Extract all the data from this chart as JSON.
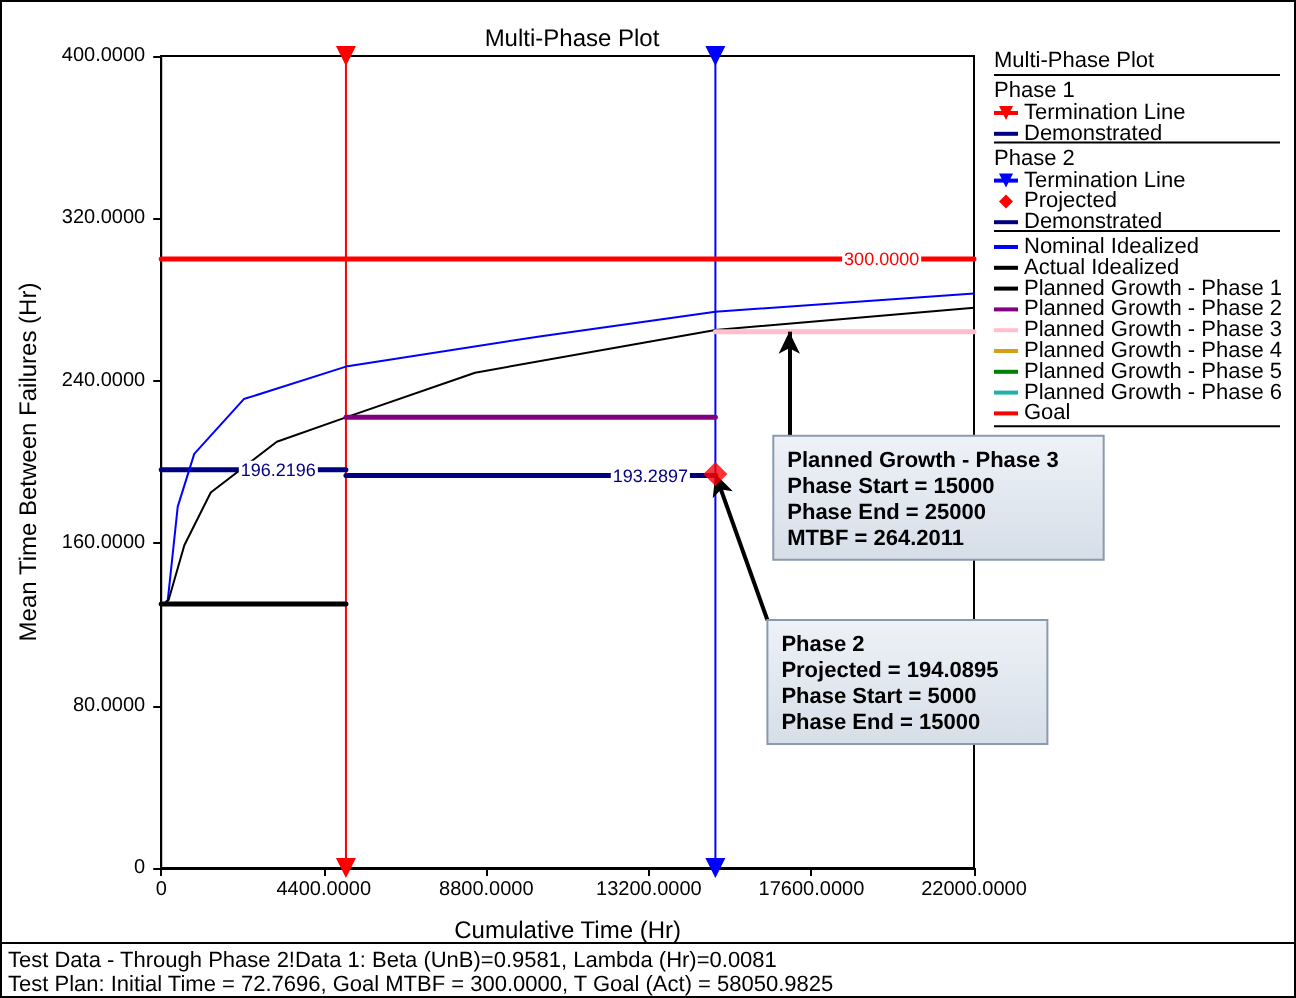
{
  "chart_data": {
    "type": "line",
    "title": "Multi-Phase Plot",
    "xlabel": "Cumulative Time (Hr)",
    "ylabel": "Mean Time Between Failures (Hr)",
    "legend_title": "Multi-Phase Plot",
    "legend": "right",
    "xlim": [
      0,
      22000
    ],
    "xticks": [
      0,
      {
        "value": 4400,
        "label": "4400.0000"
      },
      {
        "value": 8800,
        "label": "8800.0000"
      },
      {
        "value": 13200,
        "label": "13200.0000"
      },
      {
        "value": 17600,
        "label": "17600.0000"
      },
      {
        "value": 22000,
        "label": "22000.0000"
      }
    ],
    "ylim": [
      0,
      400
    ],
    "yticks": [
      0,
      {
        "value": 80,
        "label": "80.0000"
      },
      {
        "value": 160,
        "label": "160.0000"
      },
      {
        "value": 240,
        "label": "240.0000"
      },
      {
        "value": 320,
        "label": "320.0000"
      },
      {
        "value": 400,
        "label": "400.0000"
      }
    ],
    "grid": false,
    "marker": "none",
    "line_style": "solid",
    "series": [
      {
        "name": "Termination Line",
        "color": "#ff0000",
        "x": [
          5000,
          5000
        ],
        "values": [
          0,
          400
        ],
        "marker": "triangle"
      },
      {
        "name": "Demonstrated",
        "color": "#000080",
        "x": [
          0,
          3170,
          5000
        ],
        "values": [
          196.2196,
          196.2196,
          196.2196
        ],
        "value_labels": [
          null,
          "196.2196",
          null
        ]
      },
      {
        "name": "Termination Line",
        "color": "#0000ff",
        "x": [
          15000,
          15000
        ],
        "values": [
          0,
          400
        ],
        "marker": "triangle"
      },
      {
        "name": "Projected",
        "type": "scatter",
        "color": "#ff0000",
        "x": [
          15000
        ],
        "values": [
          194.0895
        ],
        "marker": "diamond"
      },
      {
        "name": "Demonstrated",
        "color": "#000080",
        "x": [
          5000,
          13240,
          15000
        ],
        "values": [
          193.2897,
          193.2897,
          193.2897
        ],
        "value_labels": [
          null,
          "193.2897",
          null
        ]
      },
      {
        "name": "Nominal Idealized",
        "color": "#0000ff",
        "x": [
          73,
          178,
          447,
          894,
          2236,
          5000,
          10285,
          15000,
          22000
        ],
        "values": [
          130,
          132,
          178,
          204,
          231,
          247,
          262,
          274,
          283
        ]
      },
      {
        "name": "Actual Idealized",
        "color": "#000000",
        "x": [
          73,
          200,
          626,
          1341,
          3129,
          5000,
          8495,
          15000,
          22000
        ],
        "values": [
          130,
          132,
          159,
          185,
          210,
          222,
          244,
          265,
          276
        ]
      },
      {
        "name": "Planned Growth - Phase 1",
        "color": "#000000",
        "x": [
          0,
          5000
        ],
        "values": [
          130,
          130
        ]
      },
      {
        "name": "Planned Growth - Phase 2",
        "color": "#800080",
        "x": [
          5000,
          15000
        ],
        "values": [
          222,
          222
        ]
      },
      {
        "name": "Planned Growth - Phase 3",
        "color": "#ffc0cb",
        "x": [
          15000,
          22000
        ],
        "values": [
          264.2011,
          264.2011
        ]
      },
      {
        "name": "Planned Growth - Phase 4",
        "color": "#d4a017"
      },
      {
        "name": "Planned Growth - Phase 5",
        "color": "#008000"
      },
      {
        "name": "Planned Growth - Phase 6",
        "color": "#20b2aa"
      },
      {
        "name": "Goal",
        "color": "#ff0000",
        "x": [
          0,
          19500,
          22000
        ],
        "values": [
          300,
          300,
          300
        ],
        "value_labels": [
          null,
          "300.0000",
          null
        ]
      }
    ],
    "annotations": [
      "Phase 1",
      "Phase 2",
      {
        "text": "Planned Growth - Phase 3\nPhase Start = 15000\nPhase End = 25000\nMTBF = 264.2011",
        "x": 17000,
        "y": 264.2011
      },
      {
        "text": "Phase 2\nProjected = 194.0895\nPhase Start = 5000\nPhase End = 15000",
        "x": 15000,
        "y": 194.0895
      },
      "Test Data - Through Phase 2!Data 1: Beta (UnB)=0.9581, Lambda (Hr)=0.0081",
      "Test Plan: Initial Time = 72.7696, Goal MTBF = 300.0000, T Goal (Act) = 58050.9825"
    ]
  }
}
